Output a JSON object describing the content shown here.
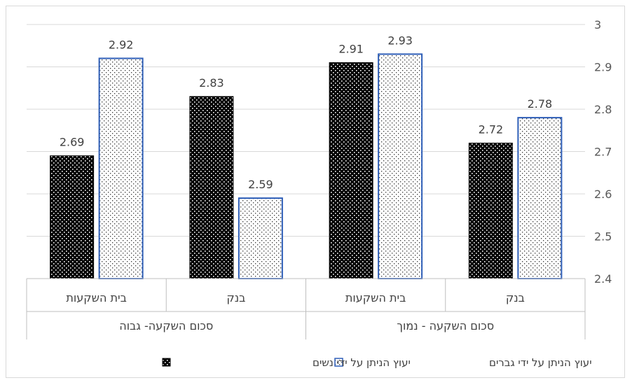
{
  "chart_data": {
    "type": "bar",
    "orientation": "rtl",
    "categories": [
      {
        "group": "סכום השקעה - נמוך",
        "label": "בנק"
      },
      {
        "group": "סכום השקעה - נמוך",
        "label": "בית השקעות"
      },
      {
        "group": "סכום השקעה- גבוה",
        "label": "בנק"
      },
      {
        "group": "סכום השקעה- גבוה",
        "label": "בית השקעות"
      }
    ],
    "groups": [
      "סכום השקעה - נמוך",
      "סכום השקעה- גבוה"
    ],
    "series": [
      {
        "name": "יעוץ הניתן על ידי גברים",
        "values": [
          2.78,
          2.93,
          2.59,
          2.92
        ],
        "pattern": "light-dots",
        "border": "#2f5fb8"
      },
      {
        "name": "יעוץ הניתן על ידי נשים",
        "values": [
          2.72,
          2.91,
          2.83,
          2.69
        ],
        "pattern": "dark-checks",
        "border": "#000000"
      }
    ],
    "data_labels": [
      [
        "2.78",
        "2.93",
        "2.59",
        "2.92"
      ],
      [
        "2.72",
        "2.91",
        "2.83",
        "2.69"
      ]
    ],
    "ylim": [
      2.4,
      3.0
    ],
    "yticks": [
      "3",
      "2.9",
      "2.8",
      "2.7",
      "2.6",
      "2.5",
      "2.4"
    ],
    "y_axis_side": "right",
    "grid": true,
    "legend_position": "bottom",
    "title": "",
    "xlabel": "",
    "ylabel": ""
  }
}
